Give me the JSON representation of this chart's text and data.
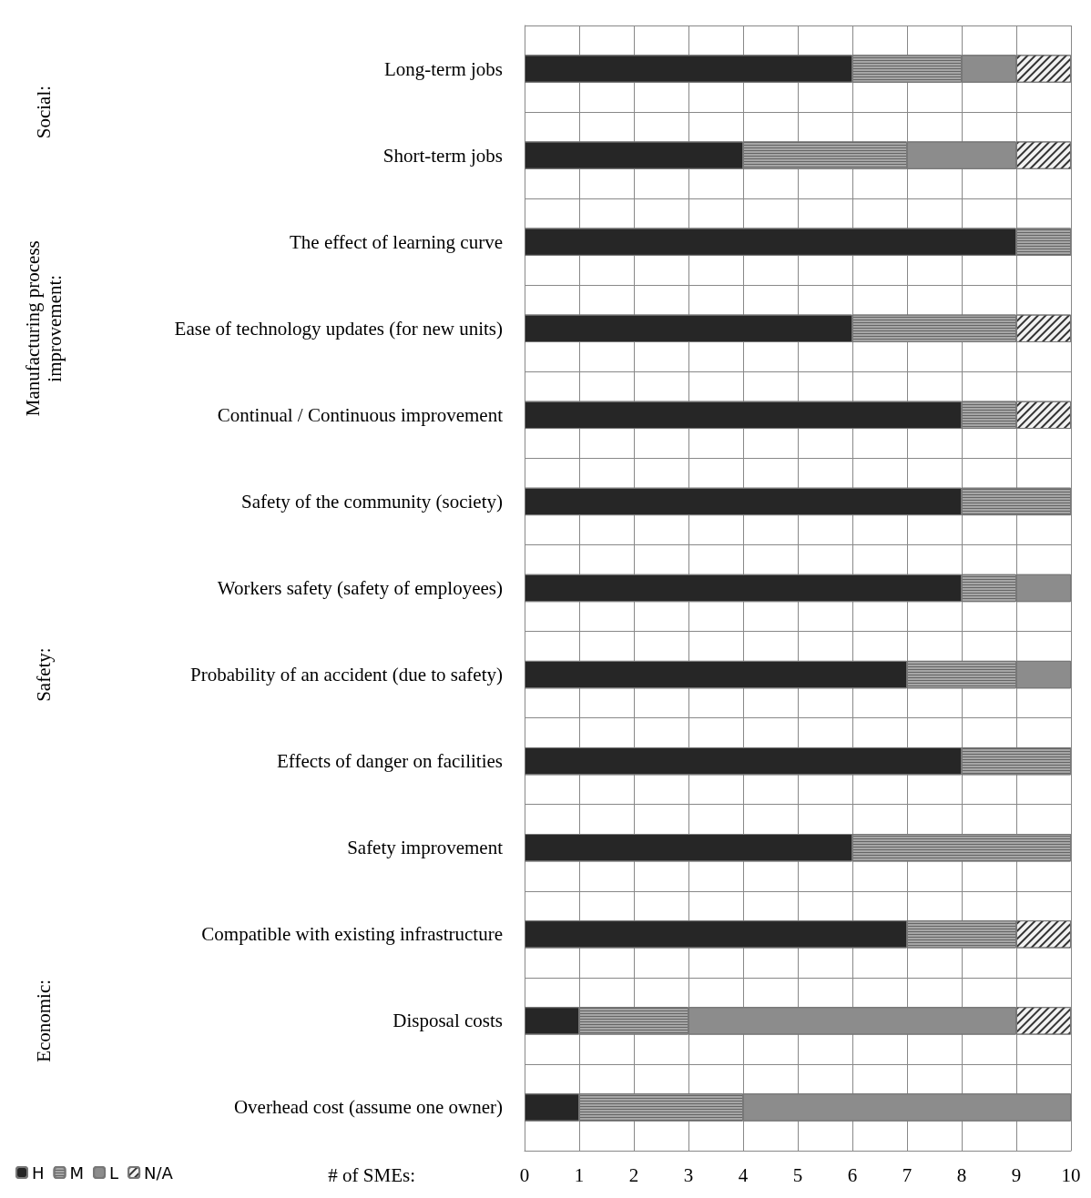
{
  "chart_data": {
    "type": "bar",
    "orientation": "horizontal",
    "stacked": true,
    "xlabel": "# of SMEs:",
    "categories": [
      "Long-term jobs",
      "Short-term jobs",
      "The effect of learning curve",
      "Ease of technology updates (for new units)",
      "Continual / Continuous improvement",
      "Safety of the community (society)",
      "Workers safety (safety of employees)",
      "Probability of an accident (due to safety)",
      "Effects of danger on facilities",
      "Safety improvement",
      "Compatible with existing infrastructure",
      "Disposal costs",
      "Overhead cost (assume one owner)"
    ],
    "series": [
      {
        "name": "H",
        "color": "#262626",
        "values": [
          6,
          4,
          9,
          6,
          8,
          8,
          8,
          7,
          8,
          6,
          7,
          1,
          1
        ]
      },
      {
        "name": "M",
        "color": "#a6a6a6",
        "values": [
          2,
          3,
          1,
          3,
          1,
          2,
          1,
          2,
          2,
          4,
          2,
          2,
          3
        ]
      },
      {
        "name": "L",
        "color": "#8c8c8c",
        "values": [
          1,
          2,
          null,
          null,
          null,
          null,
          1,
          1,
          null,
          null,
          null,
          6,
          6
        ]
      },
      {
        "name": "N/A",
        "color": "#f2f2f2",
        "values": [
          1,
          1,
          null,
          1,
          1,
          null,
          null,
          null,
          null,
          null,
          1,
          1,
          null
        ]
      }
    ],
    "annotations": [
      "Social:",
      "Manufacturing process improvement:",
      "Safety:",
      "Economic:"
    ],
    "xlim": [
      0,
      10
    ],
    "xticks": [
      0,
      1,
      2,
      3,
      4,
      5,
      6,
      7,
      8,
      9,
      10
    ],
    "grid": true,
    "legend": "bottom left"
  }
}
